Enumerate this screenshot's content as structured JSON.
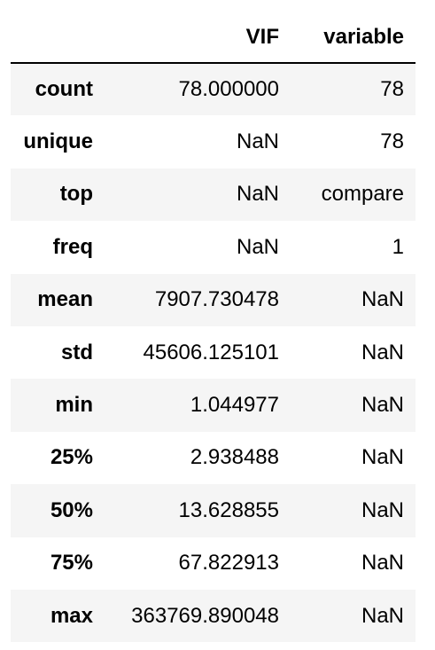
{
  "table": {
    "columns": [
      "VIF",
      "variable"
    ],
    "rows": [
      {
        "index": "count",
        "vif": "78.000000",
        "variable": "78"
      },
      {
        "index": "unique",
        "vif": "NaN",
        "variable": "78"
      },
      {
        "index": "top",
        "vif": "NaN",
        "variable": "compare"
      },
      {
        "index": "freq",
        "vif": "NaN",
        "variable": "1"
      },
      {
        "index": "mean",
        "vif": "7907.730478",
        "variable": "NaN"
      },
      {
        "index": "std",
        "vif": "45606.125101",
        "variable": "NaN"
      },
      {
        "index": "min",
        "vif": "1.044977",
        "variable": "NaN"
      },
      {
        "index": "25%",
        "vif": "2.938488",
        "variable": "NaN"
      },
      {
        "index": "50%",
        "vif": "13.628855",
        "variable": "NaN"
      },
      {
        "index": "75%",
        "vif": "67.822913",
        "variable": "NaN"
      },
      {
        "index": "max",
        "vif": "363769.890048",
        "variable": "NaN"
      }
    ]
  },
  "colors": {
    "stripe": "#f5f5f5",
    "background": "#ffffff",
    "text": "#000000",
    "header_rule": "#000000"
  }
}
